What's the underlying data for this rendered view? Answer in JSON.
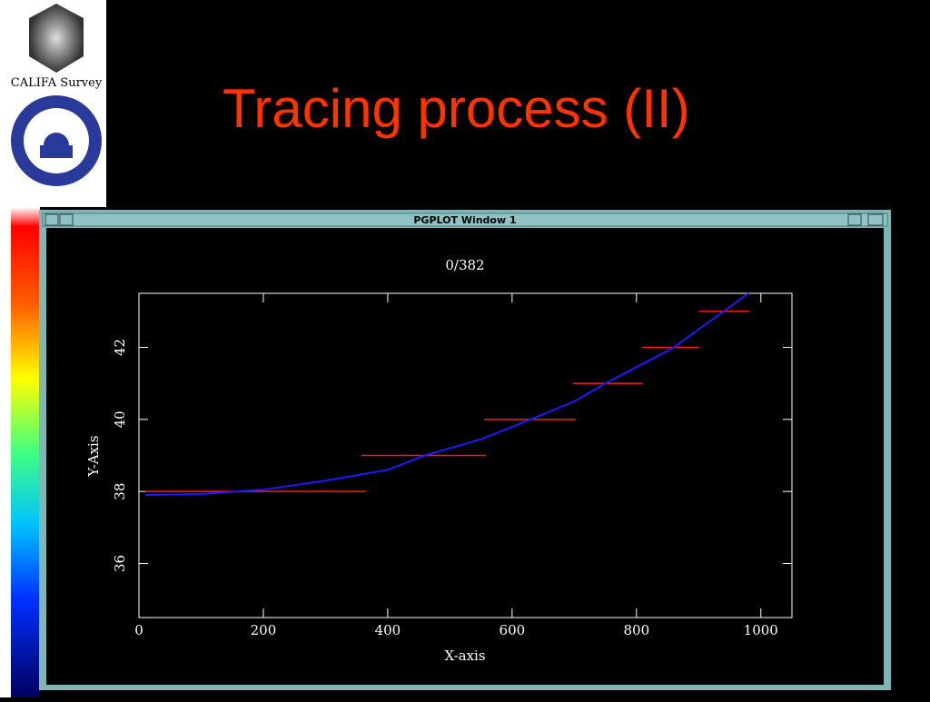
{
  "slide_title": "Tracing process (II)",
  "logo_text": "CALIFA Survey",
  "window_title": "PGPLOT Window 1",
  "chart_data": {
    "type": "line",
    "title": "0/382",
    "x_label": "X-axis",
    "y_label": "Y-Axis",
    "xlim": [
      0,
      1050
    ],
    "ylim": [
      34.5,
      43.5
    ],
    "xticks": [
      0,
      200,
      400,
      600,
      800,
      1000
    ],
    "yticks": [
      36,
      38,
      40,
      42
    ],
    "series": [
      {
        "color": "#1a1aff",
        "x": [
          10,
          100,
          200,
          300,
          400,
          460,
          550,
          630,
          700,
          750,
          800,
          860,
          920,
          980
        ],
        "values": [
          37.9,
          37.93,
          38.05,
          38.3,
          38.6,
          39.0,
          39.45,
          40.0,
          40.5,
          41.0,
          41.45,
          42.0,
          42.75,
          43.5
        ]
      }
    ],
    "steps": {
      "color": "#ff1a1a",
      "x0": [
        10,
        358,
        555,
        698,
        809,
        901
      ],
      "x1": [
        365,
        558,
        702,
        809,
        901,
        982
      ],
      "values": [
        38,
        39,
        40,
        41,
        42,
        43
      ]
    }
  }
}
